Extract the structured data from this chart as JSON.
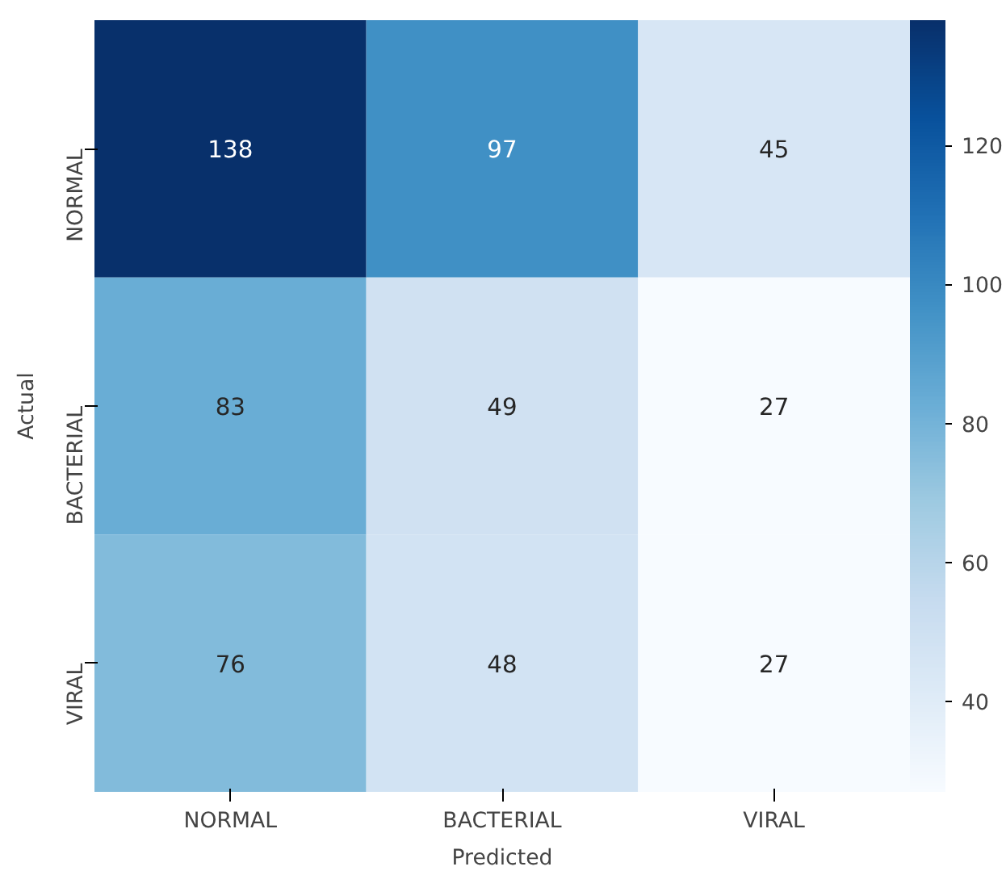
{
  "chart_data": {
    "type": "heatmap",
    "xlabel": "Predicted",
    "ylabel": "Actual",
    "categories": [
      "NORMAL",
      "BACTERIAL",
      "VIRAL"
    ],
    "y_categories": [
      "NORMAL",
      "BACTERIAL",
      "VIRAL"
    ],
    "cells": [
      [
        138,
        97,
        45
      ],
      [
        83,
        49,
        27
      ],
      [
        76,
        48,
        27
      ]
    ],
    "data_labels": true,
    "clim": [
      27,
      138
    ],
    "cticks": [
      40,
      60,
      80,
      100,
      120
    ]
  }
}
